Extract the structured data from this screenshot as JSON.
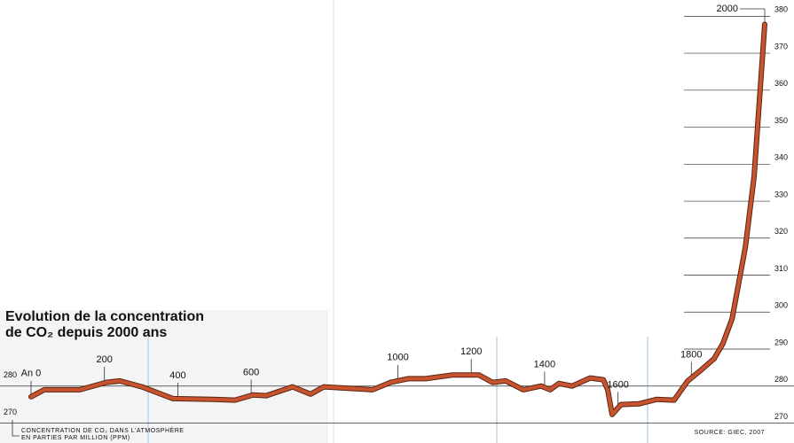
{
  "chart_data": {
    "type": "line",
    "title_lines": [
      "Evolution de la concentration",
      "de CO₂ depuis 2000 ans"
    ],
    "y_label_lines": [
      "CONCENTRATION DE CO₂ DANS L'ATMOSPHÈRE",
      "EN PARTIES PAR MILLION (PPM)"
    ],
    "source": "SOURCE: GIEC, 2007",
    "x": [
      0,
      36,
      133,
      205,
      242,
      302,
      387,
      496,
      556,
      605,
      641,
      713,
      762,
      798,
      931,
      980,
      1028,
      1076,
      1149,
      1221,
      1258,
      1294,
      1342,
      1390,
      1415,
      1439,
      1475,
      1524,
      1560,
      1572,
      1584,
      1608,
      1657,
      1705,
      1753,
      1790,
      1826,
      1862,
      1886,
      1911,
      1947,
      1971,
      1988,
      2000
    ],
    "series": [
      {
        "name": "CO₂",
        "color": "#c8542f",
        "values": [
          277.1,
          279,
          279,
          281,
          281.4,
          279.8,
          276.6,
          276.4,
          276.2,
          277.6,
          277.4,
          279.8,
          277.8,
          279.8,
          279,
          281,
          282,
          282,
          283,
          283,
          281,
          281.4,
          279,
          280,
          279,
          280.7,
          280,
          282.2,
          281.7,
          279,
          272.3,
          275,
          275.2,
          276.4,
          276.2,
          281.4,
          284.3,
          287.4,
          291.5,
          298.2,
          317.4,
          336.6,
          360.6,
          377.8
        ]
      }
    ],
    "xlim": [
      0,
      2000
    ],
    "xticks": [
      {
        "value": 0,
        "label": "An 0"
      },
      200,
      400,
      600,
      1000,
      1200,
      1400,
      1600,
      1800,
      2000
    ],
    "ylim": [
      267,
      382
    ],
    "yticks": [
      270,
      280,
      290,
      300,
      310,
      320,
      330,
      340,
      350,
      360,
      370,
      380
    ],
    "grid": true
  }
}
